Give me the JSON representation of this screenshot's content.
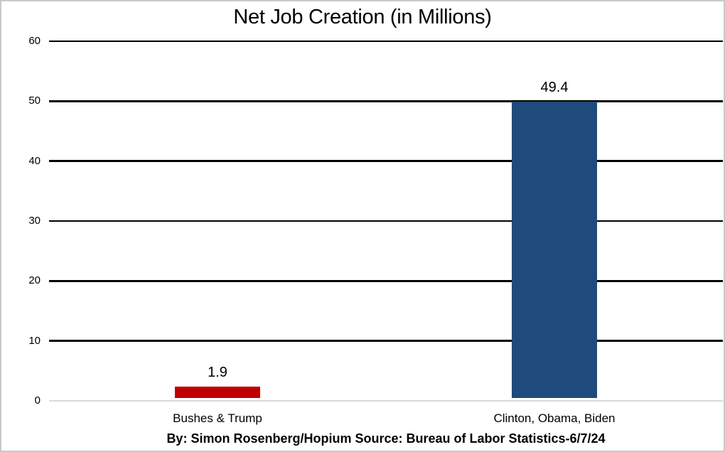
{
  "chart_data": {
    "type": "bar",
    "title": "Net Job Creation (in Millions)",
    "categories": [
      "Bushes & Trump",
      "Clinton, Obama, Biden"
    ],
    "values": [
      1.9,
      49.4
    ],
    "data_labels": [
      "1.9",
      "49.4"
    ],
    "bar_colors": [
      "#c00000",
      "#1f4a7c"
    ],
    "ylim": [
      0,
      60
    ],
    "yticks": [
      0,
      10,
      20,
      30,
      40,
      50,
      60
    ],
    "xlabel": "",
    "ylabel": "",
    "legend": "none",
    "grid": "horizontal black gridlines, light gray zero baseline"
  },
  "footer": {
    "credit": "By: Simon Rosenberg/Hopium Source: Bureau of Labor Statistics-6/7/24"
  },
  "colors": {
    "bar_red": "#c00000",
    "bar_blue": "#1f4a7c",
    "gridline": "#000000",
    "zero_line": "#d9d9d9",
    "background": "#ffffff",
    "frame_border": "#c9c9c9",
    "text": "#000000"
  }
}
